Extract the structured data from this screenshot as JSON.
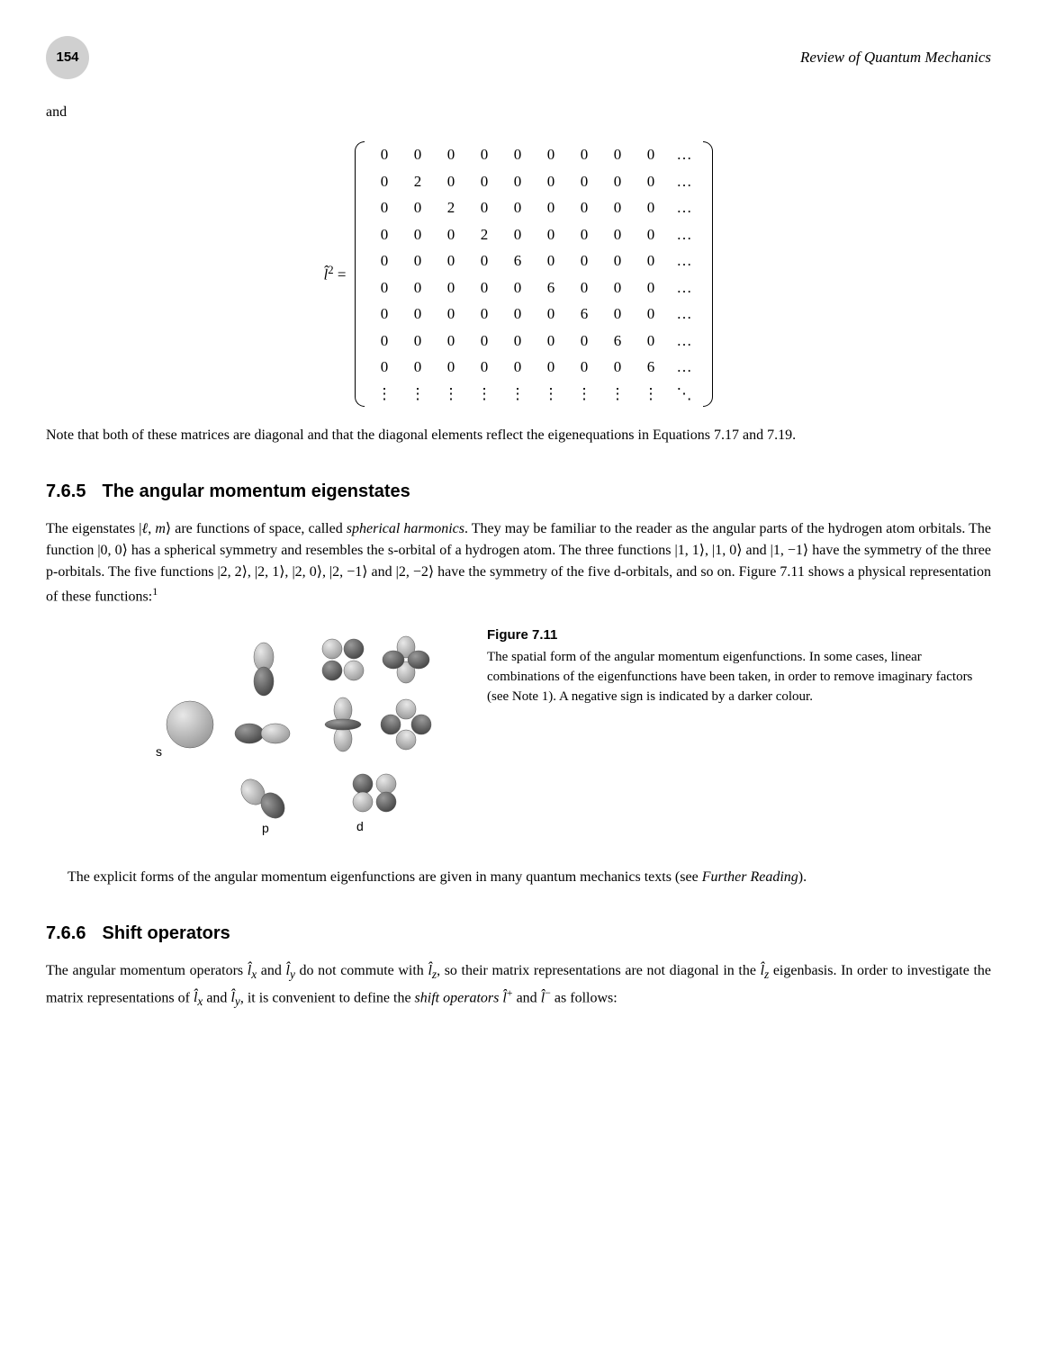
{
  "header": {
    "page_number": "154",
    "chapter_title": "Review of Quantum Mechanics"
  },
  "para_and": "and",
  "matrix": {
    "label_prefix": "l̂",
    "label_sup": "2",
    "label_suffix": " = ",
    "rows": [
      [
        "0",
        "0",
        "0",
        "0",
        "0",
        "0",
        "0",
        "0",
        "0",
        "…"
      ],
      [
        "0",
        "2",
        "0",
        "0",
        "0",
        "0",
        "0",
        "0",
        "0",
        "…"
      ],
      [
        "0",
        "0",
        "2",
        "0",
        "0",
        "0",
        "0",
        "0",
        "0",
        "…"
      ],
      [
        "0",
        "0",
        "0",
        "2",
        "0",
        "0",
        "0",
        "0",
        "0",
        "…"
      ],
      [
        "0",
        "0",
        "0",
        "0",
        "6",
        "0",
        "0",
        "0",
        "0",
        "…"
      ],
      [
        "0",
        "0",
        "0",
        "0",
        "0",
        "6",
        "0",
        "0",
        "0",
        "…"
      ],
      [
        "0",
        "0",
        "0",
        "0",
        "0",
        "0",
        "6",
        "0",
        "0",
        "…"
      ],
      [
        "0",
        "0",
        "0",
        "0",
        "0",
        "0",
        "0",
        "6",
        "0",
        "…"
      ],
      [
        "0",
        "0",
        "0",
        "0",
        "0",
        "0",
        "0",
        "0",
        "6",
        "…"
      ],
      [
        "⋮",
        "⋮",
        "⋮",
        "⋮",
        "⋮",
        "⋮",
        "⋮",
        "⋮",
        "⋮",
        "⋱"
      ]
    ]
  },
  "para_note": "Note that both of these matrices are diagonal and that the diagonal elements reflect the eigenequations in Equations 7.17 and 7.19.",
  "section765": {
    "number": "7.6.5",
    "title": "The angular momentum eigenstates"
  },
  "para_eigen": "The eigenstates |ℓ, m⟩ are functions of space, called spherical harmonics. They may be familiar to the reader as the angular parts of the hydrogen atom orbitals. The function |0, 0⟩ has a spherical symmetry and resembles the s-orbital of a hydrogen atom. The three functions |1, 1⟩, |1, 0⟩ and |1, −1⟩ have the symmetry of the three p-orbitals. The five functions |2, 2⟩, |2, 1⟩, |2, 0⟩, |2, −1⟩ and |2, −2⟩ have the symmetry of the five d-orbitals, and so on. Figure 7.11 shows a physical representation of these functions:¹",
  "figure": {
    "label": "Figure 7.11",
    "caption": "The spatial form of the angular momentum eigenfunctions. In some cases, linear combinations of the eigenfunctions have been taken, in order to remove imaginary factors (see Note 1). A negative sign is indicated by a darker colour.",
    "labels": {
      "s": "s",
      "p": "p",
      "d": "d"
    },
    "colors": {
      "light": "#b8b8b8",
      "dark": "#6a6a6a",
      "stroke": "#555"
    }
  },
  "para_explicit": "The explicit forms of the angular momentum eigenfunctions are given in many quantum mechanics texts (see Further Reading).",
  "section766": {
    "number": "7.6.6",
    "title": "Shift operators"
  },
  "para_shift": "The angular momentum operators l̂ₓ and l̂ᵧ do not commute with l̂𝓏, so their matrix representations are not diagonal in the l̂𝓏 eigenbasis. In order to investigate the matrix representations of l̂ₓ and l̂ᵧ, it is convenient to define the shift operators l̂⁺ and l̂⁻ as follows:"
}
